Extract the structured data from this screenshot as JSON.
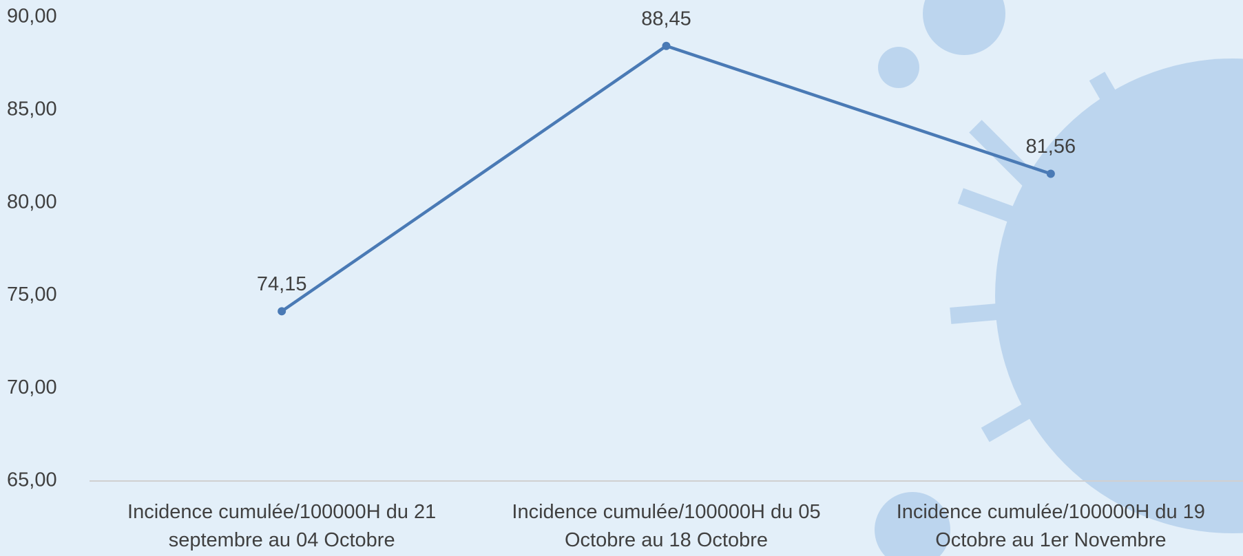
{
  "chart_data": {
    "type": "line",
    "categories": [
      "Incidence cumulée/100000H du 21 septembre au 04 Octobre",
      "Incidence cumulée/100000H du 05 Octobre au 18 Octobre",
      "Incidence cumulée/100000H du 19 Octobre au 1er Novembre"
    ],
    "values": [
      74.15,
      88.45,
      81.56
    ],
    "value_labels": [
      "74,15",
      "88,45",
      "81,56"
    ],
    "color": "#4a7ab5",
    "ylim": [
      65,
      90
    ],
    "yticks": [
      {
        "value": 65,
        "label": "65,00"
      },
      {
        "value": 70,
        "label": "70,00"
      },
      {
        "value": 75,
        "label": "75,00"
      },
      {
        "value": 80,
        "label": "80,00"
      },
      {
        "value": 85,
        "label": "85,00"
      },
      {
        "value": 90,
        "label": "90,00"
      }
    ],
    "grid": false
  }
}
